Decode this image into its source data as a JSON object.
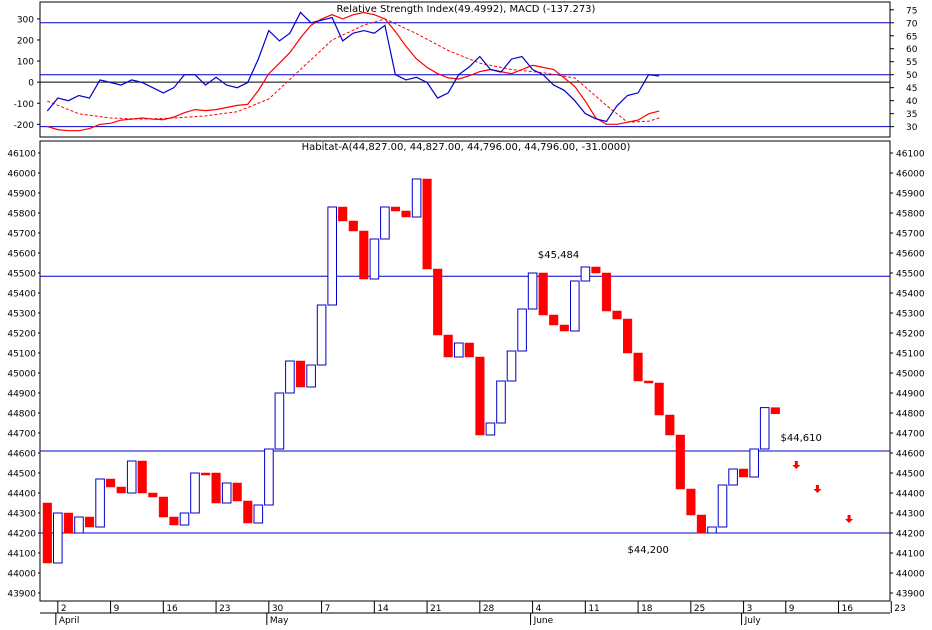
{
  "indicator_panel": {
    "title": "Relative Strength Index(49.4992), MACD (-137.273)"
  },
  "price_panel": {
    "title": "Habitat-A(44,827.00, 44,827.00, 44,796.00, 44,796.00, -31.0000)"
  },
  "colors": {
    "frame": "#000000",
    "hline": "#0000cc",
    "up_candle": "#0000cc",
    "down_candle": "#ff0000",
    "rsi": "#0000cc",
    "macd": "#ff0000",
    "signal": "#ff0000",
    "arrow": "#ff0000"
  },
  "chart_data": [
    {
      "type": "line",
      "title": "Relative Strength Index(49.4992), MACD (-137.273)",
      "y_left_ticks": [
        "300",
        "200",
        "100",
        "0",
        "-100",
        "-200"
      ],
      "y_left_values": [
        300,
        200,
        100,
        0,
        -100,
        -200
      ],
      "y_left_range": [
        -260,
        380
      ],
      "y_right_ticks": [
        "75",
        "70",
        "65",
        "60",
        "55",
        "50",
        "45",
        "40",
        "35",
        "30"
      ],
      "y_right_values": [
        75,
        70,
        65,
        60,
        55,
        50,
        45,
        40,
        35,
        30
      ],
      "y_right_range": [
        26,
        78
      ],
      "reference_lines_rsi": [
        70,
        50,
        30
      ],
      "reference_lines_macd": [
        0
      ],
      "rsi_series": [
        [
          0,
          36
        ],
        [
          1,
          41
        ],
        [
          2,
          40
        ],
        [
          3,
          42
        ],
        [
          4,
          41
        ],
        [
          5,
          48
        ],
        [
          6,
          47
        ],
        [
          7,
          46
        ],
        [
          8,
          48
        ],
        [
          9,
          47
        ],
        [
          10,
          45
        ],
        [
          11,
          43
        ],
        [
          12,
          45
        ],
        [
          13,
          50
        ],
        [
          14,
          50
        ],
        [
          15,
          46
        ],
        [
          16,
          49
        ],
        [
          17,
          46
        ],
        [
          18,
          45
        ],
        [
          19,
          47
        ],
        [
          20,
          56
        ],
        [
          21,
          67
        ],
        [
          22,
          63
        ],
        [
          23,
          66
        ],
        [
          24,
          74
        ],
        [
          25,
          70
        ],
        [
          26,
          71
        ],
        [
          27,
          72
        ],
        [
          28,
          63
        ],
        [
          29,
          66
        ],
        [
          30,
          67
        ],
        [
          31,
          66
        ],
        [
          32,
          69
        ],
        [
          33,
          50
        ],
        [
          34,
          48
        ],
        [
          35,
          49
        ],
        [
          36,
          47
        ],
        [
          37,
          41
        ],
        [
          38,
          43
        ],
        [
          39,
          50
        ],
        [
          40,
          53
        ],
        [
          41,
          57
        ],
        [
          42,
          52
        ],
        [
          43,
          51
        ],
        [
          44,
          56
        ],
        [
          45,
          57
        ],
        [
          46,
          52
        ],
        [
          47,
          50
        ],
        [
          48,
          46
        ],
        [
          49,
          44
        ],
        [
          50,
          40
        ],
        [
          51,
          35
        ],
        [
          52,
          33
        ],
        [
          53,
          32
        ],
        [
          54,
          38
        ],
        [
          55,
          42
        ],
        [
          56,
          43
        ],
        [
          57,
          50
        ],
        [
          58,
          49.5
        ]
      ],
      "macd_series": [
        [
          0,
          -210
        ],
        [
          1,
          -225
        ],
        [
          2,
          -230
        ],
        [
          3,
          -230
        ],
        [
          4,
          -220
        ],
        [
          5,
          -200
        ],
        [
          6,
          -195
        ],
        [
          7,
          -180
        ],
        [
          8,
          -175
        ],
        [
          9,
          -170
        ],
        [
          10,
          -175
        ],
        [
          11,
          -178
        ],
        [
          12,
          -165
        ],
        [
          13,
          -145
        ],
        [
          14,
          -130
        ],
        [
          15,
          -135
        ],
        [
          16,
          -130
        ],
        [
          17,
          -120
        ],
        [
          18,
          -110
        ],
        [
          19,
          -105
        ],
        [
          20,
          -40
        ],
        [
          21,
          40
        ],
        [
          22,
          90
        ],
        [
          23,
          140
        ],
        [
          24,
          210
        ],
        [
          25,
          270
        ],
        [
          26,
          300
        ],
        [
          27,
          320
        ],
        [
          28,
          300
        ],
        [
          29,
          320
        ],
        [
          30,
          330
        ],
        [
          31,
          320
        ],
        [
          32,
          300
        ],
        [
          33,
          240
        ],
        [
          34,
          170
        ],
        [
          35,
          110
        ],
        [
          36,
          70
        ],
        [
          37,
          40
        ],
        [
          38,
          20
        ],
        [
          39,
          15
        ],
        [
          40,
          30
        ],
        [
          41,
          50
        ],
        [
          42,
          60
        ],
        [
          43,
          50
        ],
        [
          44,
          40
        ],
        [
          45,
          60
        ],
        [
          46,
          80
        ],
        [
          47,
          70
        ],
        [
          48,
          60
        ],
        [
          49,
          20
        ],
        [
          50,
          -20
        ],
        [
          51,
          -90
        ],
        [
          52,
          -170
        ],
        [
          53,
          -200
        ],
        [
          54,
          -200
        ],
        [
          55,
          -190
        ],
        [
          56,
          -180
        ],
        [
          57,
          -150
        ],
        [
          58,
          -137.3
        ]
      ],
      "signal_series": [
        [
          0,
          -90
        ],
        [
          3,
          -150
        ],
        [
          6,
          -170
        ],
        [
          9,
          -175
        ],
        [
          12,
          -170
        ],
        [
          15,
          -160
        ],
        [
          18,
          -140
        ],
        [
          21,
          -80
        ],
        [
          24,
          60
        ],
        [
          27,
          200
        ],
        [
          30,
          270
        ],
        [
          32,
          300
        ],
        [
          35,
          230
        ],
        [
          38,
          150
        ],
        [
          41,
          90
        ],
        [
          44,
          60
        ],
        [
          47,
          45
        ],
        [
          50,
          20
        ],
        [
          53,
          -110
        ],
        [
          55,
          -190
        ],
        [
          57,
          -185
        ],
        [
          58,
          -170
        ]
      ]
    },
    {
      "type": "candlestick",
      "title": "Habitat-A(44,827.00, 44,827.00, 44,796.00, 44,796.00, -31.0000)",
      "y_ticks": [
        "46100",
        "46000",
        "45900",
        "45800",
        "45700",
        "45600",
        "45500",
        "45400",
        "45300",
        "45200",
        "45100",
        "45000",
        "44900",
        "44800",
        "44700",
        "44600",
        "44500",
        "44400",
        "44300",
        "44200",
        "44100",
        "44000",
        "43900"
      ],
      "y_values": [
        46100,
        46000,
        45900,
        45800,
        45700,
        45600,
        45500,
        45400,
        45300,
        45200,
        45100,
        45000,
        44900,
        44800,
        44700,
        44600,
        44500,
        44400,
        44300,
        44200,
        44100,
        44000,
        43900
      ],
      "ylim": [
        43860,
        46160
      ],
      "x_tick_labels": [
        "2",
        "9",
        "16",
        "23",
        "30",
        "7",
        "14",
        "21",
        "28",
        "4",
        "11",
        "18",
        "25",
        "3",
        "9",
        "16",
        "23"
      ],
      "x_tick_slots": [
        1.5,
        6.5,
        11.5,
        16.5,
        21.5,
        26.5,
        31.5,
        36.5,
        41.5,
        46.5,
        51.5,
        56.5,
        61.5,
        66.5,
        70.5,
        75.5,
        80.5
      ],
      "month_labels": [
        "April",
        "May",
        "June",
        "July"
      ],
      "month_slots": [
        1.5,
        21.5,
        46.5,
        66.5
      ],
      "horizontal_levels": [
        45484,
        44610,
        44200
      ],
      "level_labels": [
        "$45,484",
        "$44,610",
        "$44,200"
      ],
      "arrows_slots": [
        71.5,
        73.5,
        76.5
      ],
      "candles": [
        {
          "d": "down",
          "o": 44350,
          "c": 44050
        },
        {
          "d": "up",
          "o": 44050,
          "c": 44300
        },
        {
          "d": "down",
          "o": 44300,
          "c": 44200
        },
        {
          "d": "up",
          "o": 44200,
          "c": 44280
        },
        {
          "d": "down",
          "o": 44280,
          "c": 44230
        },
        {
          "d": "up",
          "o": 44230,
          "c": 44470
        },
        {
          "d": "down",
          "o": 44470,
          "c": 44430
        },
        {
          "d": "down",
          "o": 44430,
          "c": 44400
        },
        {
          "d": "up",
          "o": 44400,
          "c": 44560
        },
        {
          "d": "down",
          "o": 44560,
          "c": 44400
        },
        {
          "d": "down",
          "o": 44400,
          "c": 44380
        },
        {
          "d": "down",
          "o": 44380,
          "c": 44280
        },
        {
          "d": "down",
          "o": 44280,
          "c": 44240
        },
        {
          "d": "up",
          "o": 44240,
          "c": 44300
        },
        {
          "d": "up",
          "o": 44300,
          "c": 44500
        },
        {
          "d": "down",
          "o": 44500,
          "c": 44495
        },
        {
          "d": "down",
          "o": 44500,
          "c": 44350
        },
        {
          "d": "up",
          "o": 44350,
          "c": 44450
        },
        {
          "d": "down",
          "o": 44450,
          "c": 44360
        },
        {
          "d": "down",
          "o": 44360,
          "c": 44250
        },
        {
          "d": "up",
          "o": 44250,
          "c": 44340
        },
        {
          "d": "up",
          "o": 44340,
          "c": 44620
        },
        {
          "d": "up",
          "o": 44620,
          "c": 44900
        },
        {
          "d": "up",
          "o": 44900,
          "c": 45060
        },
        {
          "d": "down",
          "o": 45060,
          "c": 44930
        },
        {
          "d": "up",
          "o": 44930,
          "c": 45040
        },
        {
          "d": "up",
          "o": 45040,
          "c": 45340
        },
        {
          "d": "up",
          "o": 45340,
          "c": 45830
        },
        {
          "d": "down",
          "o": 45830,
          "c": 45760
        },
        {
          "d": "down",
          "o": 45760,
          "c": 45710
        },
        {
          "d": "down",
          "o": 45710,
          "c": 45470
        },
        {
          "d": "up",
          "o": 45470,
          "c": 45670
        },
        {
          "d": "up",
          "o": 45670,
          "c": 45830
        },
        {
          "d": "down",
          "o": 45830,
          "c": 45810
        },
        {
          "d": "down",
          "o": 45810,
          "c": 45780
        },
        {
          "d": "up",
          "o": 45780,
          "c": 45970
        },
        {
          "d": "down",
          "o": 45970,
          "c": 45520
        },
        {
          "d": "down",
          "o": 45520,
          "c": 45190
        },
        {
          "d": "down",
          "o": 45190,
          "c": 45080
        },
        {
          "d": "up",
          "o": 45080,
          "c": 45150
        },
        {
          "d": "down",
          "o": 45150,
          "c": 45080
        },
        {
          "d": "down",
          "o": 45080,
          "c": 44690
        },
        {
          "d": "up",
          "o": 44690,
          "c": 44750
        },
        {
          "d": "up",
          "o": 44750,
          "c": 44960
        },
        {
          "d": "up",
          "o": 44960,
          "c": 45110
        },
        {
          "d": "up",
          "o": 45110,
          "c": 45320
        },
        {
          "d": "up",
          "o": 45320,
          "c": 45500
        },
        {
          "d": "down",
          "o": 45500,
          "c": 45290
        },
        {
          "d": "down",
          "o": 45290,
          "c": 45240
        },
        {
          "d": "down",
          "o": 45240,
          "c": 45210
        },
        {
          "d": "up",
          "o": 45210,
          "c": 45460
        },
        {
          "d": "up",
          "o": 45460,
          "c": 45530
        },
        {
          "d": "down",
          "o": 45530,
          "c": 45500
        },
        {
          "d": "down",
          "o": 45500,
          "c": 45310
        },
        {
          "d": "down",
          "o": 45310,
          "c": 45270
        },
        {
          "d": "down",
          "o": 45270,
          "c": 45100
        },
        {
          "d": "down",
          "o": 45100,
          "c": 44960
        },
        {
          "d": "down",
          "o": 44960,
          "c": 44950
        },
        {
          "d": "down",
          "o": 44950,
          "c": 44790
        },
        {
          "d": "down",
          "o": 44790,
          "c": 44690
        },
        {
          "d": "down",
          "o": 44690,
          "c": 44420
        },
        {
          "d": "down",
          "o": 44420,
          "c": 44290
        },
        {
          "d": "down",
          "o": 44290,
          "c": 44200
        },
        {
          "d": "up",
          "o": 44200,
          "c": 44230
        },
        {
          "d": "up",
          "o": 44230,
          "c": 44440
        },
        {
          "d": "up",
          "o": 44440,
          "c": 44520
        },
        {
          "d": "down",
          "o": 44520,
          "c": 44480
        },
        {
          "d": "up",
          "o": 44480,
          "c": 44620
        },
        {
          "d": "up",
          "o": 44620,
          "c": 44827
        },
        {
          "d": "down",
          "o": 44827,
          "c": 44796
        }
      ]
    }
  ]
}
